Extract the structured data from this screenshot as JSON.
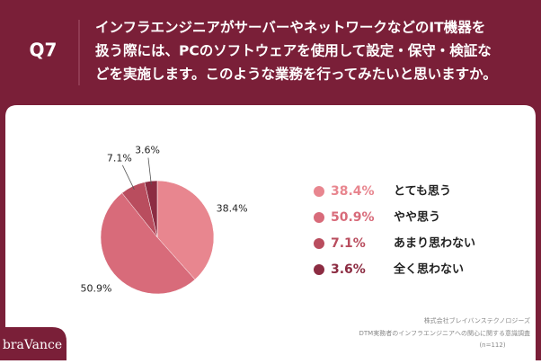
{
  "header": {
    "number": "Q7",
    "question_lines": [
      "インフラエンジニアがサーバーやネットワークなどのIT機器を",
      "扱う際には、PCのソフトウェアを使用して設定・保守・検証な",
      "どを実施します。このような業務を行ってみたいと思いますか。"
    ]
  },
  "chart_data": {
    "type": "pie",
    "categories": [
      "とても思う",
      "やや思う",
      "あまり思わない",
      "全く思わない"
    ],
    "values": [
      38.4,
      50.9,
      7.1,
      3.6
    ],
    "value_labels": [
      "38.4%",
      "50.9%",
      "7.1%",
      "3.6%"
    ],
    "colors": [
      "#e8868f",
      "#d86b7a",
      "#b94d5e",
      "#8c2c42"
    ],
    "legend": "right"
  },
  "footer": {
    "company": "株式会社ブレイバンステクノロジーズ",
    "survey": "DTM実務者のインフラエンジニアへの関心に関する意識調査",
    "sample": "(n=112)",
    "logo": "braVance"
  }
}
